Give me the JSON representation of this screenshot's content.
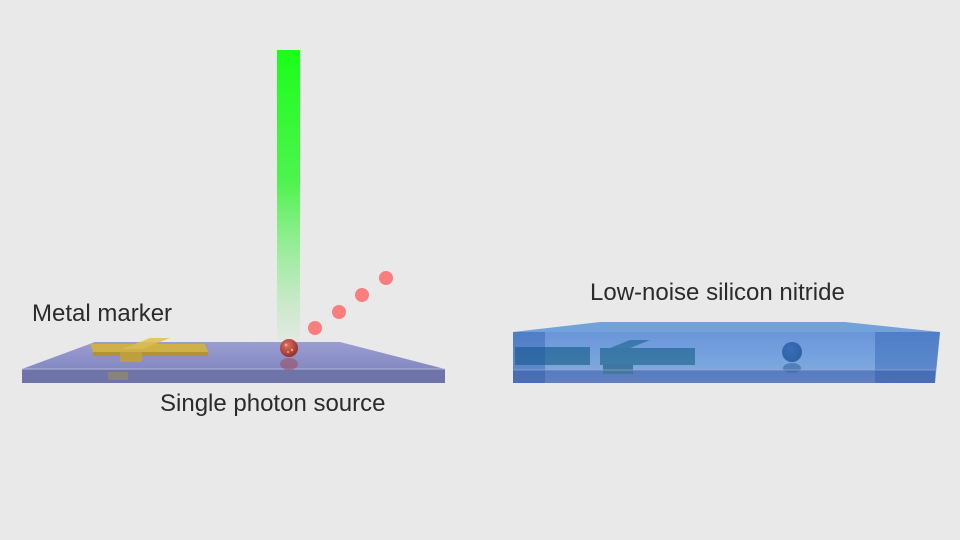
{
  "labels": {
    "metal_marker": "Metal marker",
    "single_photon_source": "Single photon source",
    "low_noise_silicon_nitride": "Low-noise silicon nitride"
  },
  "colors": {
    "background": "#e9e9e9",
    "laser_beam": "#19ff19",
    "photon": "#ff5a5a",
    "emitter": "#b8433a",
    "gold_marker": "#d8b530",
    "substrate_top": "#8f93c9",
    "substrate_edge": "#6e73a8",
    "nitride_layer": "#2f6fd3",
    "embedded_marker": "#3a6c4c",
    "text": "#2b2b2b"
  },
  "emitted_photon_count": 4
}
